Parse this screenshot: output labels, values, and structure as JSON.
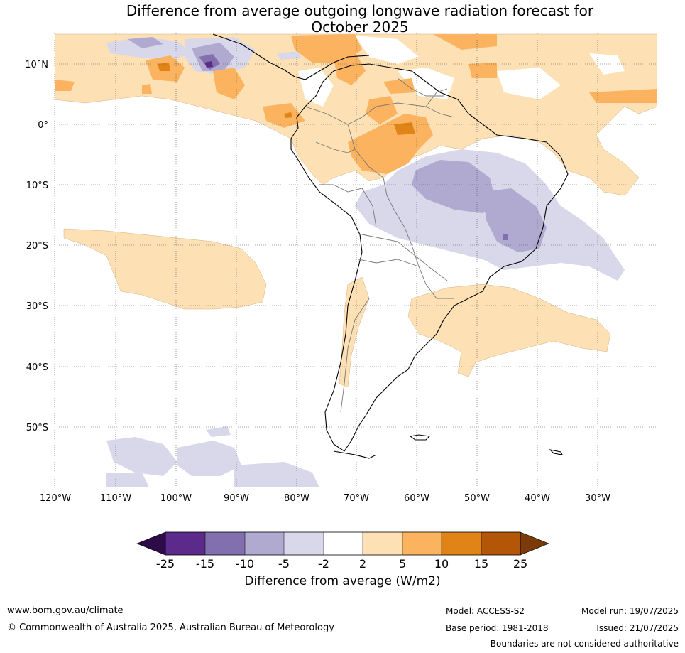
{
  "title": {
    "line1": "Difference from average outgoing longwave radiation forecast for",
    "line2": "October 2025"
  },
  "map": {
    "lat_labels": [
      "10°N",
      "0°",
      "10°S",
      "20°S",
      "30°S",
      "40°S",
      "50°S"
    ],
    "lat_values": [
      10,
      0,
      -10,
      -20,
      -30,
      -40,
      -50
    ],
    "lon_labels": [
      "120°W",
      "110°W",
      "100°W",
      "90°W",
      "80°W",
      "70°W",
      "60°W",
      "50°W",
      "40°W",
      "30°W"
    ],
    "lon_values": [
      -120,
      -110,
      -100,
      -90,
      -80,
      -70,
      -60,
      -50,
      -40,
      -30
    ],
    "lon_range": [
      -120,
      -20
    ],
    "lat_range": [
      -60,
      15
    ],
    "grid": true
  },
  "colorbar": {
    "ticks": [
      "-25",
      "-15",
      "-10",
      "-5",
      "-2",
      "2",
      "5",
      "10",
      "15",
      "25"
    ],
    "colors": [
      "#2d0a48",
      "#5b2a8a",
      "#8270ae",
      "#b0a9d0",
      "#d8d8ea",
      "#ffffff",
      "#fde0b4",
      "#fbb35f",
      "#e08418",
      "#b35608",
      "#7a3a0a"
    ],
    "label": "Difference from average (W/m2)"
  },
  "footer": {
    "url": "www.bom.gov.au/climate",
    "copyright": "© Commonwealth of Australia 2025, Australian Bureau of Meteorology",
    "model": "Model: ACCESS-S2",
    "base_period": "Base period: 1981-2018",
    "model_run": "Model run: 19/07/2025",
    "issued": "Issued: 21/07/2025",
    "disclaimer": "Boundaries are not considered authoritative"
  }
}
